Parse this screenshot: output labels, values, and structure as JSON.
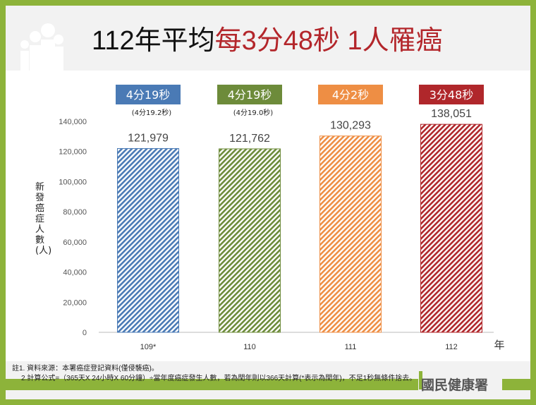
{
  "title": {
    "prefix": "112年平均",
    "highlight": "每3分48秒 1人罹癌"
  },
  "chart_data": {
    "type": "bar",
    "categories": [
      "109*",
      "110",
      "111",
      "112"
    ],
    "values": [
      121979,
      121762,
      130293,
      138051
    ],
    "value_labels": [
      "121,979",
      "121,762",
      "130,293",
      "138,051"
    ],
    "interval_labels": [
      "4分19秒",
      "4分19秒",
      "4分2秒",
      "3分48秒"
    ],
    "interval_detail": [
      "(4分19.2秒)",
      "(4分19.0秒)",
      "",
      ""
    ],
    "colors": [
      "#4a7ab5",
      "#6d8b3a",
      "#ee8e44",
      "#b0272b"
    ],
    "ylabel": "新發癌症人數(人)",
    "xlabel": "年",
    "ylim": [
      0,
      140000
    ],
    "yticks": [
      "0",
      "20,000",
      "40,000",
      "60,000",
      "80,000",
      "100,000",
      "120,000",
      "140,000"
    ],
    "pattern": "diagonal-hatch",
    "grid": false
  },
  "notes": {
    "line1": "註1. 資料來源：本署癌症登記資料(僅侵襲癌)。",
    "line2": "2.計算公式=（365天X 24小時X 60分鐘）÷當年度癌症發生人數，若為閏年則以366天計算(*表示為閏年)，不足1秒無條件捨去。"
  },
  "logo": "國民健康署"
}
